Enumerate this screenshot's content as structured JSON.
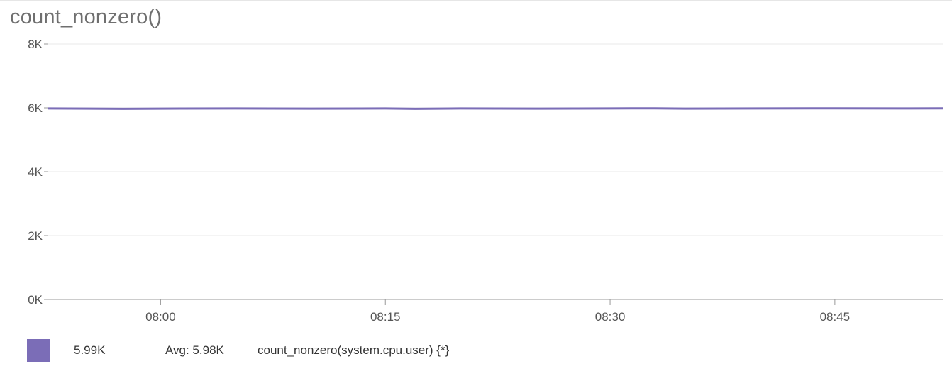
{
  "title": "count_nonzero()",
  "colors": {
    "series": "#7b6db7",
    "grid": "#e8e8e8",
    "axis": "#999999"
  },
  "legend": {
    "value": "5.99K",
    "avg_label": "Avg: 5.98K",
    "name": "count_nonzero(system.cpu.user) {*}"
  },
  "chart_data": {
    "type": "line",
    "title": "count_nonzero()",
    "xlabel": "",
    "ylabel": "",
    "ylim": [
      0,
      8000
    ],
    "yticks": [
      0,
      2000,
      4000,
      6000,
      8000
    ],
    "ytick_labels": [
      "0K",
      "2K",
      "4K",
      "6K",
      "8K"
    ],
    "xlim": [
      "07:52:30",
      "08:52:15"
    ],
    "xticks": [
      "08:00",
      "08:15",
      "08:30",
      "08:45"
    ],
    "grid": true,
    "legend_position": "bottom-left",
    "series": [
      {
        "name": "count_nonzero(system.cpu.user) {*}",
        "x": [
          "07:52:30",
          "07:57:30",
          "08:00:00",
          "08:05:00",
          "08:10:00",
          "08:15:00",
          "08:17:00",
          "08:20:00",
          "08:25:00",
          "08:30:00",
          "08:33:00",
          "08:35:00",
          "08:40:00",
          "08:45:00",
          "08:50:00",
          "08:52:15"
        ],
        "values": [
          5980,
          5970,
          5975,
          5980,
          5975,
          5980,
          5970,
          5980,
          5975,
          5980,
          5985,
          5975,
          5980,
          5985,
          5980,
          5985
        ]
      }
    ]
  }
}
